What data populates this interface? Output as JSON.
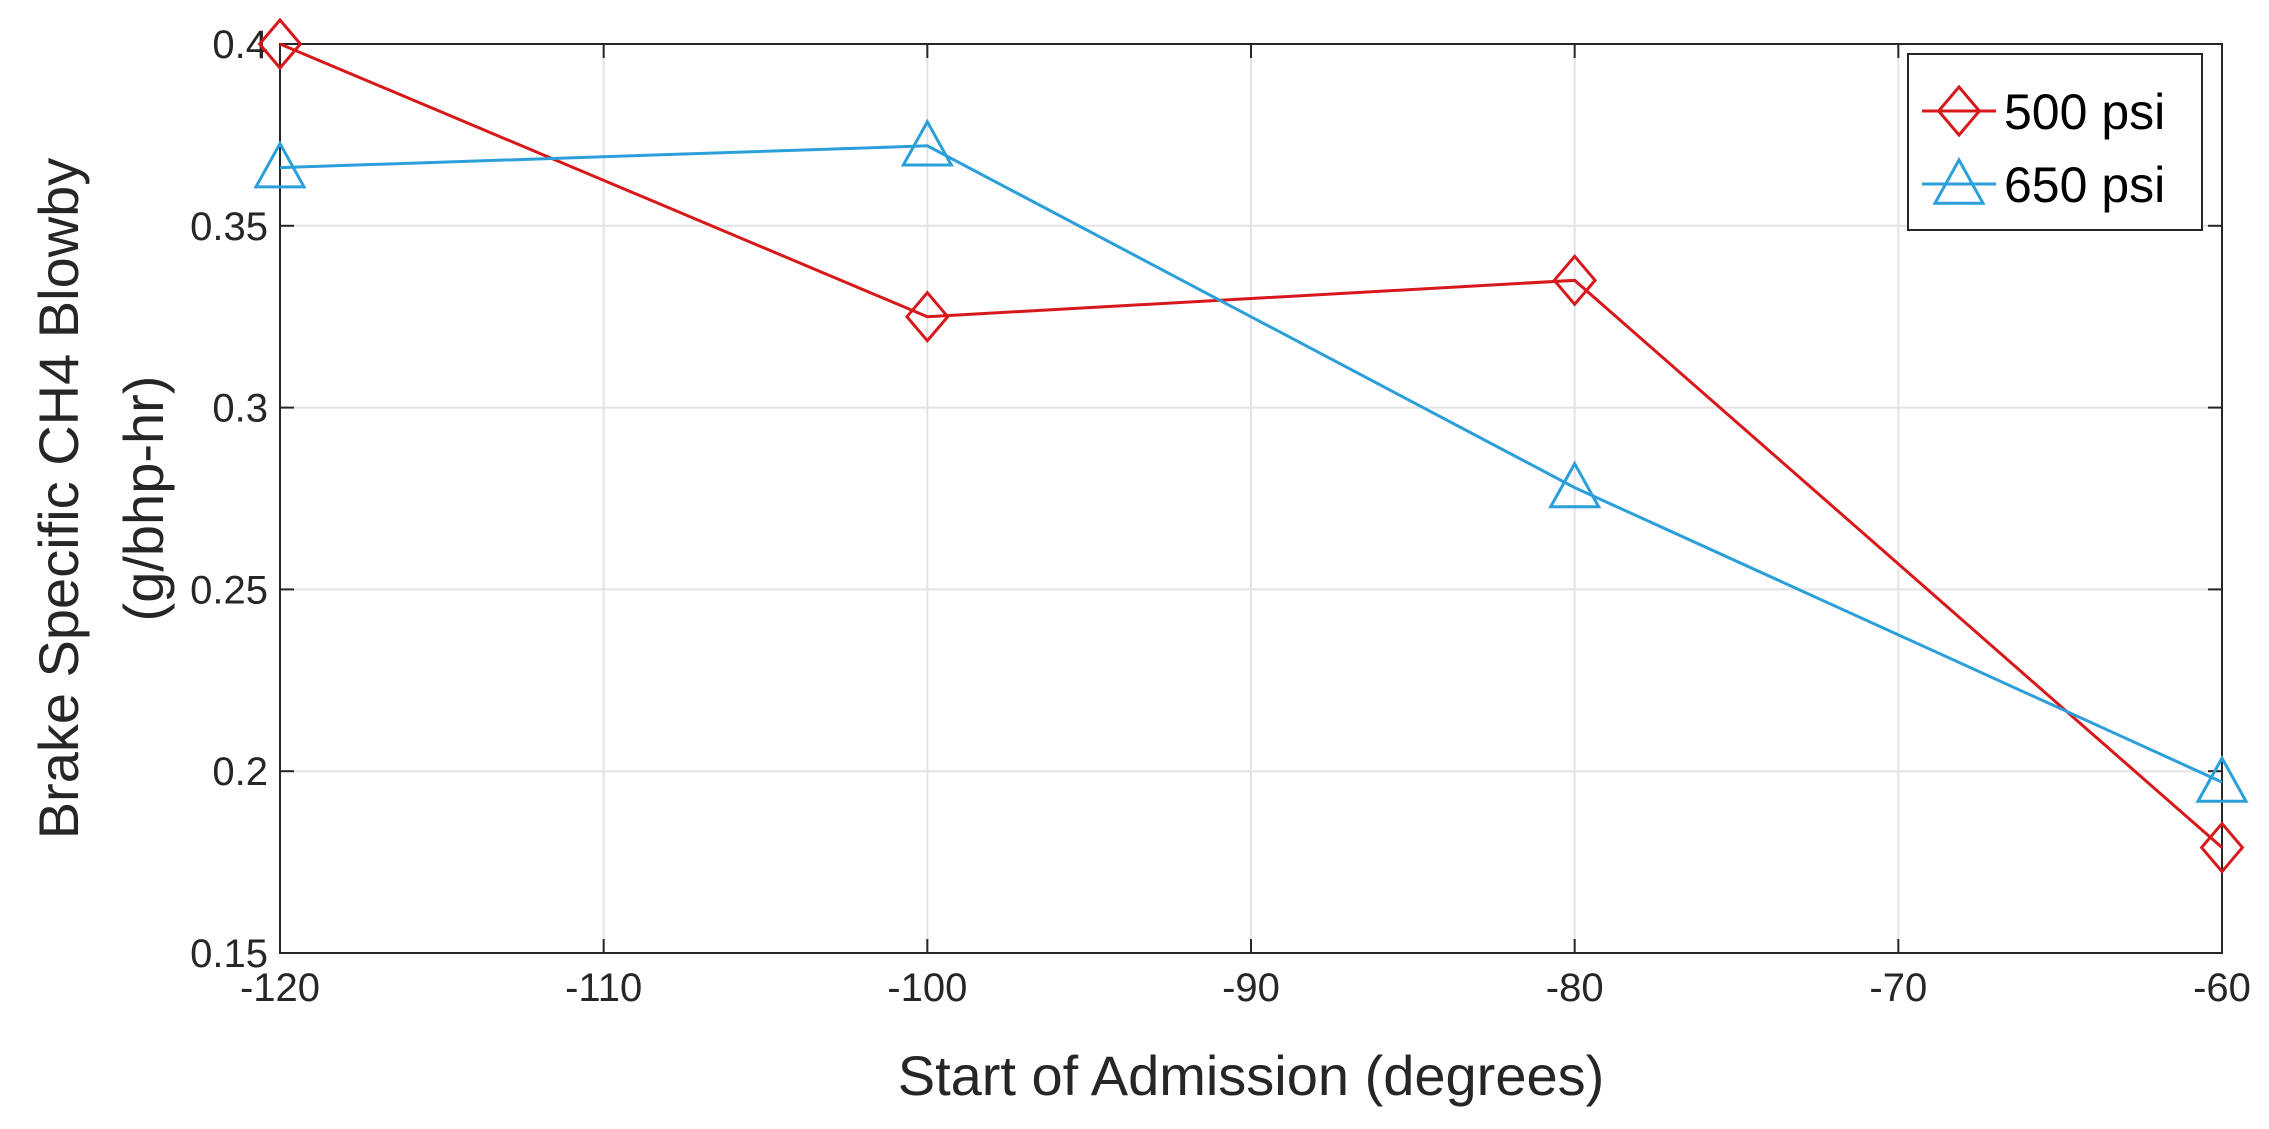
{
  "chart_data": {
    "type": "line",
    "title": "",
    "xlabel": "Start of Admission (degrees)",
    "ylabel_line1": "Brake Specific CH4 Blowby",
    "ylabel_line2": "(g/bhp-hr)",
    "xlim": [
      -120,
      -60
    ],
    "ylim": [
      0.15,
      0.4
    ],
    "grid": true,
    "legend_position": "top-right",
    "xticks": [
      -120,
      -110,
      -100,
      -90,
      -80,
      -70,
      -60
    ],
    "xtick_labels": [
      "-120",
      "-110",
      "-100",
      "-90",
      "-80",
      "-70",
      "-60"
    ],
    "yticks": [
      0.15,
      0.2,
      0.25,
      0.3,
      0.35,
      0.4
    ],
    "ytick_labels": [
      "0.15",
      "0.2",
      "0.25",
      "0.3",
      "0.35",
      "0.4"
    ],
    "x": [
      -120,
      -100,
      -80,
      -60
    ],
    "series": [
      {
        "name": "500 psi",
        "values": [
          0.4,
          0.325,
          0.335,
          0.179
        ],
        "color": "#d7191c",
        "marker": "diamond"
      },
      {
        "name": "650 psi",
        "values": [
          0.366,
          0.372,
          0.278,
          0.197
        ],
        "color": "#2b9fd9",
        "marker": "triangle"
      }
    ]
  }
}
